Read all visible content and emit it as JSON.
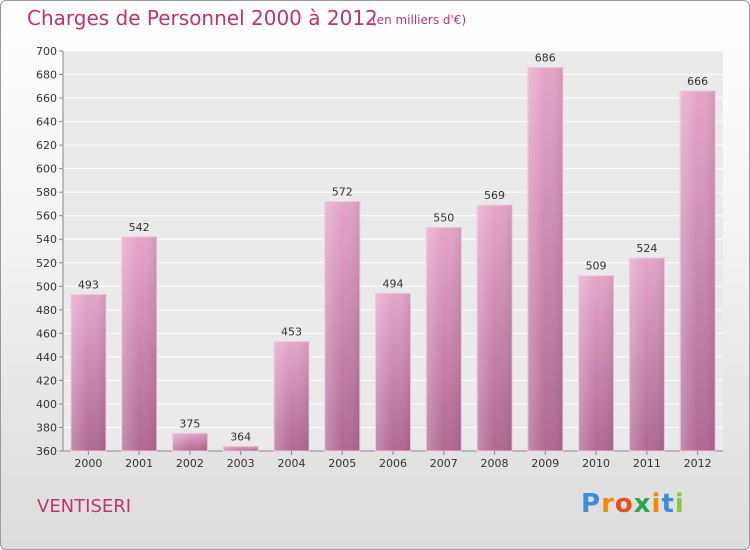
{
  "chart_data": {
    "type": "bar",
    "title": "Charges de Personnel 2000 à 2012",
    "subtitle": "(en milliers d'€)",
    "categories": [
      "2000",
      "2001",
      "2002",
      "2003",
      "2004",
      "2005",
      "2006",
      "2007",
      "2008",
      "2009",
      "2010",
      "2011",
      "2012"
    ],
    "values": [
      493,
      542,
      375,
      364,
      453,
      572,
      494,
      550,
      569,
      686,
      509,
      524,
      666
    ],
    "ylim": [
      360,
      700
    ],
    "yticks": [
      360,
      380,
      400,
      420,
      440,
      460,
      480,
      500,
      520,
      540,
      560,
      580,
      600,
      620,
      640,
      660,
      680,
      700
    ],
    "grid": true,
    "bar_color": "#c9709f"
  },
  "commune": "VENTISERI",
  "logo": {
    "letters": [
      "P",
      "r",
      "o",
      "x",
      "i",
      "t",
      "i"
    ],
    "colors": [
      "#3a8fd6",
      "#f08a00",
      "#e94e1b",
      "#2aa84a",
      "#f08a00",
      "#3a8fd6",
      "#8cc63f"
    ]
  }
}
